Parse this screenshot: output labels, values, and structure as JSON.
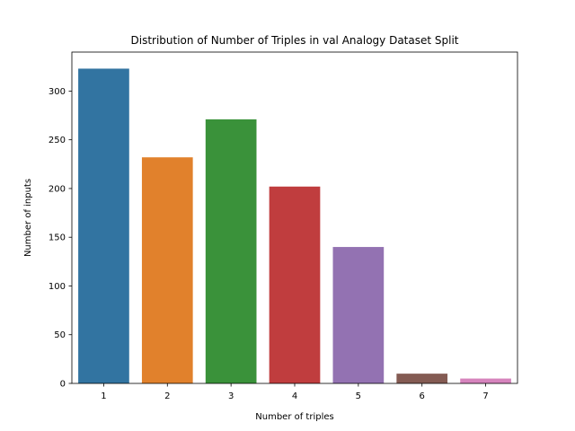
{
  "chart_data": {
    "type": "bar",
    "title": "Distribution of Number of Triples in val Analogy Dataset Split",
    "xlabel": "Number of triples",
    "ylabel": "Number of inputs",
    "categories": [
      "1",
      "2",
      "3",
      "4",
      "5",
      "6",
      "7"
    ],
    "values": [
      323,
      232,
      271,
      202,
      140,
      10,
      5
    ],
    "colors": [
      "#3274a1",
      "#e1812c",
      "#3a923a",
      "#c03d3e",
      "#9372b2",
      "#845b53",
      "#d684bd"
    ],
    "yticks": [
      0,
      50,
      100,
      150,
      200,
      250,
      300
    ],
    "ylim": [
      0,
      340
    ],
    "grid": false,
    "legend": "none"
  }
}
